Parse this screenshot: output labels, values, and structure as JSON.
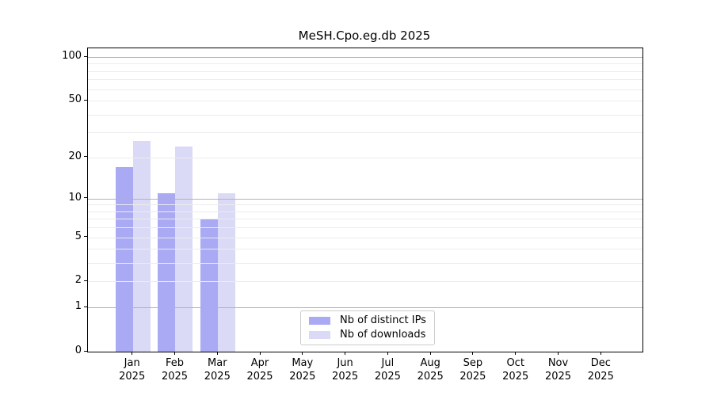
{
  "title": "MeSH.Cpo.eg.db 2025",
  "chart_data": {
    "type": "bar",
    "title": "MeSH.Cpo.eg.db 2025",
    "x_months": [
      "Jan",
      "Feb",
      "Mar",
      "Apr",
      "May",
      "Jun",
      "Jul",
      "Aug",
      "Sep",
      "Oct",
      "Nov",
      "Dec"
    ],
    "x_year": "2025",
    "series": [
      {
        "name": "Nb of distinct IPs",
        "color": "#a9a9f4",
        "values": [
          17,
          11,
          7,
          null,
          null,
          null,
          null,
          null,
          null,
          null,
          null,
          null
        ]
      },
      {
        "name": "Nb of downloads",
        "color": "#dadaf7",
        "values": [
          26,
          24,
          11,
          null,
          null,
          null,
          null,
          null,
          null,
          null,
          null,
          null
        ]
      }
    ],
    "y_scale": "log1p",
    "y_ticks": [
      0,
      1,
      2,
      5,
      10,
      20,
      50,
      100
    ],
    "y_major_grid": [
      1,
      10,
      100
    ],
    "y_minor_grid": [
      2,
      3,
      4,
      5,
      6,
      7,
      8,
      9,
      20,
      30,
      40,
      50,
      60,
      70,
      80,
      90
    ],
    "ylim": [
      0,
      115
    ],
    "grid": true,
    "legend_position": "lower center",
    "colors": {
      "major_grid": "#b3b3b3",
      "minor_grid": "#ececec",
      "axis": "#000000",
      "background": "#ffffff"
    }
  }
}
